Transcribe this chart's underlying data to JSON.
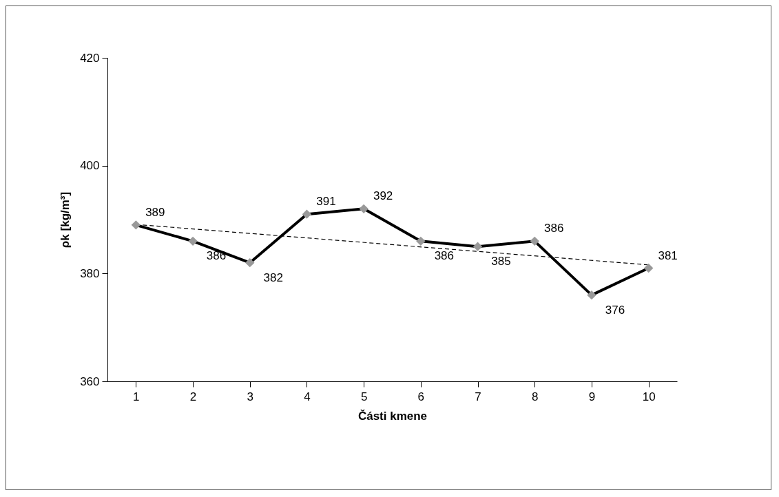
{
  "chart_data": {
    "type": "line",
    "xlabel": "Části kmene",
    "ylabel": "ρk [kg/m³]",
    "categories": [
      "1",
      "2",
      "3",
      "4",
      "5",
      "6",
      "7",
      "8",
      "9",
      "10"
    ],
    "series": [
      {
        "color": "#000000",
        "x": [
          "1",
          "10"
        ],
        "values": [
          389.1,
          381.6
        ],
        "line_style": "dashed",
        "marker": "none"
      },
      {
        "color": "#000000",
        "values": [
          389,
          386,
          382,
          391,
          392,
          386,
          385,
          386,
          376,
          381
        ],
        "marker": "none"
      },
      {
        "type": "scatter",
        "color": "#999999",
        "x": [
          "1",
          "2",
          "3",
          "4",
          "5",
          "6",
          "7",
          "8",
          "9",
          "10"
        ],
        "values": [
          389,
          386,
          382,
          391,
          392,
          386,
          385,
          386,
          376,
          381
        ],
        "marker": "diamond",
        "value_labels": [
          "389",
          "386",
          "382",
          "391",
          "392",
          "386",
          "385",
          "386",
          "376",
          "381"
        ]
      }
    ],
    "ylim": [
      360,
      420
    ],
    "yticks": [
      360,
      380,
      400,
      420
    ],
    "grid": false
  }
}
